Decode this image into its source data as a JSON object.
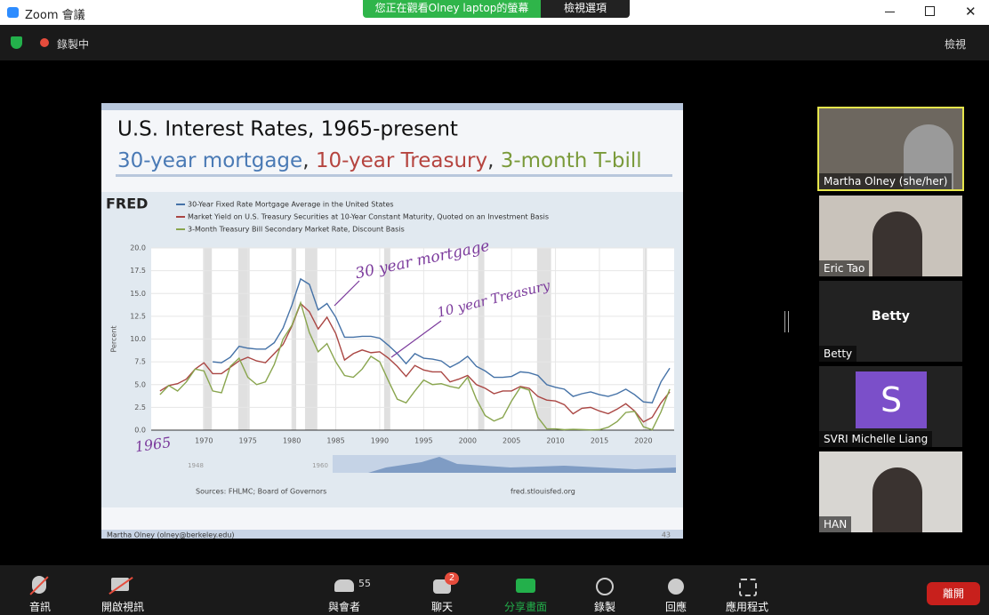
{
  "window": {
    "title": "Zoom 會議",
    "banner": "您正在觀看Olney  laptop的螢幕",
    "view_options": "檢視選項"
  },
  "top_bar": {
    "recording": "錄製中",
    "view": "檢視"
  },
  "slide": {
    "title": "U.S. Interest Rates, 1965-present",
    "subtitle": [
      "30-year mortgage",
      ", ",
      "10-year Treasury",
      ", ",
      "3-month T-bill"
    ],
    "footer": "Martha Olney (olney@berkeley.edu)",
    "page": "43"
  },
  "chart_data": {
    "type": "line",
    "logo": "FRED",
    "y_label": "Percent",
    "sources": "Sources: FHLMC; Board of Governors",
    "site": "fred.stlouisfed.org",
    "navigator_labels": [
      "1948",
      "1960"
    ],
    "annotations": [
      "30 year mortgage",
      "10 year Treasury",
      "1965"
    ],
    "x": [
      1965,
      1966,
      1967,
      1968,
      1969,
      1970,
      1971,
      1972,
      1973,
      1974,
      1975,
      1976,
      1977,
      1978,
      1979,
      1980,
      1981,
      1982,
      1983,
      1984,
      1985,
      1986,
      1987,
      1988,
      1989,
      1990,
      1991,
      1992,
      1993,
      1994,
      1995,
      1996,
      1997,
      1998,
      1999,
      2000,
      2001,
      2002,
      2003,
      2004,
      2005,
      2006,
      2007,
      2008,
      2009,
      2010,
      2011,
      2012,
      2013,
      2014,
      2015,
      2016,
      2017,
      2018,
      2019,
      2020,
      2021,
      2022,
      2023
    ],
    "series": [
      {
        "name": "30-Year Fixed Rate Mortgage Average in the United States",
        "color": "#4572a7",
        "values": [
          null,
          null,
          null,
          null,
          null,
          null,
          7.5,
          7.4,
          8.0,
          9.2,
          9.0,
          8.9,
          8.9,
          9.6,
          11.2,
          13.7,
          16.6,
          16.0,
          13.2,
          13.9,
          12.4,
          10.2,
          10.2,
          10.3,
          10.3,
          10.1,
          9.3,
          8.4,
          7.3,
          8.4,
          7.9,
          7.8,
          7.6,
          6.9,
          7.4,
          8.1,
          7.0,
          6.5,
          5.8,
          5.8,
          5.9,
          6.4,
          6.3,
          6.0,
          5.0,
          4.7,
          4.5,
          3.7,
          4.0,
          4.2,
          3.9,
          3.7,
          4.0,
          4.5,
          3.9,
          3.1,
          3.0,
          5.3,
          6.8
        ]
      },
      {
        "name": "Market Yield on U.S. Treasury Securities at 10-Year Constant Maturity, Quoted on an Investment Basis",
        "color": "#aa4643",
        "values": [
          4.3,
          4.9,
          5.1,
          5.6,
          6.7,
          7.4,
          6.2,
          6.2,
          6.9,
          7.6,
          8.0,
          7.6,
          7.4,
          8.4,
          9.4,
          11.4,
          13.9,
          13.0,
          11.1,
          12.4,
          10.6,
          7.7,
          8.4,
          8.8,
          8.5,
          8.6,
          7.9,
          7.0,
          5.9,
          7.1,
          6.6,
          6.4,
          6.4,
          5.3,
          5.6,
          6.0,
          5.0,
          4.6,
          4.0,
          4.3,
          4.3,
          4.8,
          4.6,
          3.7,
          3.3,
          3.2,
          2.8,
          1.8,
          2.4,
          2.5,
          2.1,
          1.8,
          2.3,
          2.9,
          2.1,
          0.9,
          1.4,
          3.0,
          4.2
        ]
      },
      {
        "name": "3-Month Treasury Bill Secondary Market Rate, Discount Basis",
        "color": "#89a54e",
        "values": [
          3.9,
          4.9,
          4.3,
          5.3,
          6.7,
          6.5,
          4.3,
          4.1,
          7.0,
          7.9,
          5.8,
          5.0,
          5.3,
          7.2,
          10.0,
          11.5,
          14.0,
          10.7,
          8.6,
          9.5,
          7.5,
          6.0,
          5.8,
          6.7,
          8.1,
          7.5,
          5.4,
          3.4,
          3.0,
          4.3,
          5.5,
          5.0,
          5.1,
          4.8,
          4.6,
          5.8,
          3.4,
          1.6,
          1.0,
          1.4,
          3.2,
          4.7,
          4.4,
          1.4,
          0.15,
          0.14,
          0.05,
          0.09,
          0.06,
          0.03,
          0.05,
          0.32,
          0.93,
          1.94,
          2.06,
          0.37,
          0.04,
          2.0,
          4.5
        ]
      }
    ],
    "recessions": [
      [
        1969.9,
        1970.9
      ],
      [
        1973.9,
        1975.2
      ],
      [
        1980.0,
        1980.5
      ],
      [
        1981.5,
        1982.9
      ],
      [
        1990.5,
        1991.2
      ],
      [
        2001.2,
        2001.9
      ],
      [
        2007.9,
        2009.5
      ],
      [
        2020.1,
        2020.4
      ]
    ],
    "xlim": [
      1964,
      2023.5
    ],
    "xticks": [
      1970,
      1975,
      1980,
      1985,
      1990,
      1995,
      2000,
      2005,
      2010,
      2015,
      2020
    ],
    "ylim": [
      0,
      20
    ],
    "yticks": [
      {
        "value": 0,
        "label": "0.0"
      },
      {
        "value": 2.5,
        "label": "2.5"
      },
      {
        "value": 5,
        "label": "5.0"
      },
      {
        "value": 7.5,
        "label": "7.5"
      },
      {
        "value": 10,
        "label": "10.0"
      },
      {
        "value": 12.5,
        "label": "12.5"
      },
      {
        "value": 15,
        "label": "15.0"
      },
      {
        "value": 17.5,
        "label": "17.5"
      },
      {
        "value": 20,
        "label": "20.0"
      }
    ],
    "grid": true
  },
  "participants": [
    {
      "name": "Martha Olney (she/her)"
    },
    {
      "name": "Eric Tao"
    },
    {
      "name": "Betty",
      "display": "Betty"
    },
    {
      "name": "SVRI Michelle Liang",
      "avatar": "S"
    },
    {
      "name": "HAN"
    }
  ],
  "controls": {
    "audio": "音訊",
    "video": "開啟視訊",
    "participants": "與會者",
    "participant_count": "55",
    "chat": "聊天",
    "chat_badge": "2",
    "share": "分享畫面",
    "record": "錄製",
    "reactions": "回應",
    "apps": "應用程式",
    "leave": "離開"
  }
}
